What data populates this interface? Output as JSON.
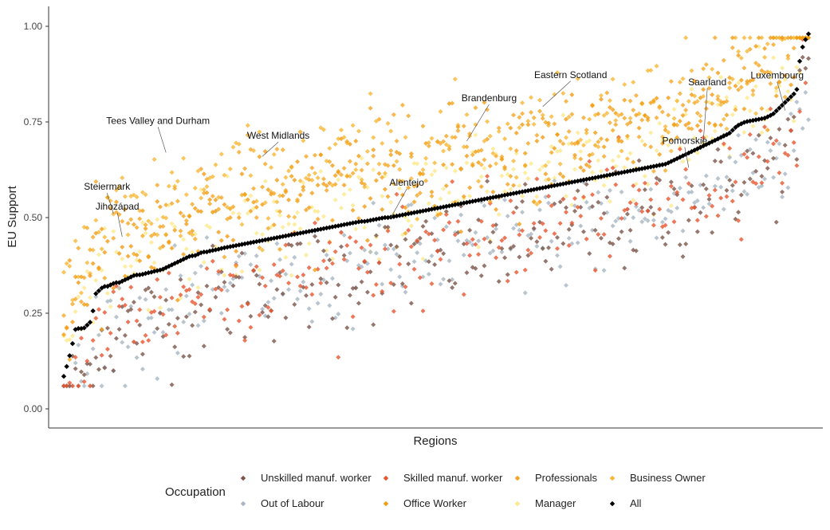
{
  "chart_data": {
    "type": "scatter",
    "title": "",
    "xlabel": "Regions",
    "ylabel": "EU Support",
    "ylim": [
      -0.05,
      1.05
    ],
    "yticks": [
      0,
      0.25,
      0.5,
      0.75,
      1
    ],
    "ytick_labels": [
      "0.00",
      "0.25",
      "0.50",
      "0.75",
      "1.00"
    ],
    "n_regions": 256,
    "grid": false,
    "legend": {
      "title": "Occupation",
      "position": "bottom",
      "entries": [
        {
          "label": "Unskilled manuf. worker",
          "color": "#7a5548"
        },
        {
          "label": "Skilled manuf. worker",
          "color": "#e8552f"
        },
        {
          "label": "Professionals",
          "color": "#f5a623"
        },
        {
          "label": "Business Owner",
          "color": "#f7b733"
        },
        {
          "label": "Out of Labour",
          "color": "#a7b6c2"
        },
        {
          "label": "Office Worker",
          "color": "#f39c12"
        },
        {
          "label": "Manager",
          "color": "#fde98a"
        },
        {
          "label": "All",
          "color": "#000000"
        }
      ]
    },
    "annotations": [
      {
        "label": "Tees Valley and Durham",
        "x": 35,
        "y": 0.67
      },
      {
        "label": "West Midlands",
        "x": 68,
        "y": 0.66
      },
      {
        "label": "Steiermark",
        "x": 17,
        "y": 0.51
      },
      {
        "label": "Jihozápad",
        "x": 20,
        "y": 0.45
      },
      {
        "label": "Alentejo",
        "x": 112,
        "y": 0.5
      },
      {
        "label": "Brandenburg",
        "x": 138,
        "y": 0.7
      },
      {
        "label": "Eastern Scotland",
        "x": 164,
        "y": 0.79
      },
      {
        "label": "Saarland",
        "x": 219,
        "y": 0.7
      },
      {
        "label": "Pomorskie",
        "x": 214,
        "y": 0.63
      },
      {
        "label": "Luxembourg",
        "x": 247,
        "y": 0.78
      }
    ],
    "series": [
      {
        "name": "All",
        "color": "#000000",
        "values": [
          0.085,
          0.12,
          0.16,
          0.21,
          0.21,
          0.21,
          0.22,
          0.23,
          0.3,
          0.31,
          0.32,
          0.32,
          0.325,
          0.33,
          0.33,
          0.335,
          0.34,
          0.345,
          0.35,
          0.35,
          0.352,
          0.355,
          0.357,
          0.36,
          0.362,
          0.365,
          0.37,
          0.375,
          0.38,
          0.385,
          0.39,
          0.395,
          0.4,
          0.4,
          0.405,
          0.41,
          0.41,
          0.413,
          0.415,
          0.417,
          0.42,
          0.422,
          0.424,
          0.426,
          0.428,
          0.43,
          0.432,
          0.434,
          0.436,
          0.438,
          0.44,
          0.442,
          0.444,
          0.446,
          0.448,
          0.45,
          0.452,
          0.454,
          0.456,
          0.458,
          0.46,
          0.462,
          0.464,
          0.466,
          0.468,
          0.47,
          0.472,
          0.474,
          0.476,
          0.478,
          0.48,
          0.482,
          0.484,
          0.486,
          0.488,
          0.49,
          0.49,
          0.492,
          0.494,
          0.496,
          0.498,
          0.5,
          0.5,
          0.502,
          0.504,
          0.506,
          0.508,
          0.51,
          0.512,
          0.514,
          0.516,
          0.518,
          0.52,
          0.522,
          0.524,
          0.526,
          0.528,
          0.53,
          0.532,
          0.534,
          0.536,
          0.538,
          0.54,
          0.542,
          0.544,
          0.546,
          0.548,
          0.55,
          0.552,
          0.554,
          0.556,
          0.558,
          0.56,
          0.562,
          0.564,
          0.566,
          0.568,
          0.57,
          0.572,
          0.574,
          0.576,
          0.578,
          0.58,
          0.582,
          0.584,
          0.586,
          0.588,
          0.59,
          0.592,
          0.594,
          0.596,
          0.598,
          0.6,
          0.602,
          0.604,
          0.606,
          0.608,
          0.61,
          0.612,
          0.614,
          0.616,
          0.618,
          0.62,
          0.622,
          0.624,
          0.626,
          0.628,
          0.63,
          0.632,
          0.634,
          0.636,
          0.638,
          0.64,
          0.645,
          0.65,
          0.655,
          0.66,
          0.665,
          0.67,
          0.675,
          0.68,
          0.685,
          0.69,
          0.695,
          0.7,
          0.705,
          0.71,
          0.715,
          0.72,
          0.73,
          0.74,
          0.745,
          0.75,
          0.752,
          0.754,
          0.756,
          0.758,
          0.76,
          0.765,
          0.77,
          0.78,
          0.79,
          0.8,
          0.81,
          0.82,
          0.83,
          0.93,
          0.96,
          0.98
        ]
      },
      {
        "name": "Unskilled manuf. worker",
        "color": "#7a5548",
        "values": []
      },
      {
        "name": "Skilled manuf. worker",
        "color": "#e8552f",
        "values": []
      },
      {
        "name": "Professionals",
        "color": "#f5a623",
        "values": []
      },
      {
        "name": "Business Owner",
        "color": "#f7b733",
        "values": []
      },
      {
        "name": "Out of Labour",
        "color": "#a7b6c2",
        "values": []
      },
      {
        "name": "Office Worker",
        "color": "#f39c12",
        "values": []
      },
      {
        "name": "Manager",
        "color": "#fde98a",
        "values": []
      }
    ],
    "series_offsets": {
      "Unskilled manuf. worker": -0.13,
      "Skilled manuf. worker": -0.1,
      "Professionals": 0.13,
      "Business Owner": 0.16,
      "Out of Labour": -0.12,
      "Office Worker": 0.1,
      "Manager": 0.03
    }
  }
}
